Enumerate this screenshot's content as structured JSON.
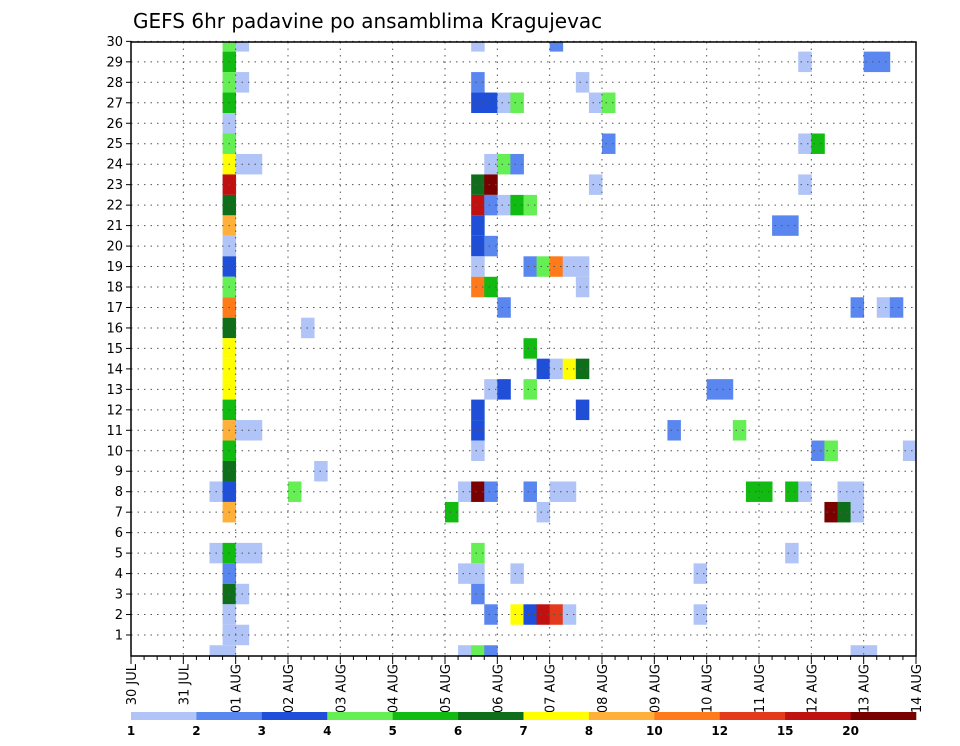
{
  "chart_data": {
    "type": "heatmap",
    "title": "GEFS 6hr padavine po ansamblima Kragujevac",
    "y_ticks": [
      1,
      2,
      3,
      4,
      5,
      6,
      7,
      8,
      9,
      10,
      11,
      12,
      13,
      14,
      15,
      16,
      17,
      18,
      19,
      20,
      21,
      22,
      23,
      24,
      25,
      26,
      27,
      28,
      29,
      30
    ],
    "x_tick_labels": [
      "30 JUL",
      "31 JUL",
      "01 AUG",
      "02 AUG",
      "03 AUG",
      "04 AUG",
      "05 AUG",
      "06 AUG",
      "07 AUG",
      "08 AUG",
      "09 AUG",
      "10 AUG",
      "11 AUG",
      "12 AUG",
      "13 AUG",
      "14 AUG"
    ],
    "x_range_days": [
      0,
      15
    ],
    "y_range": [
      0,
      30
    ],
    "grid": true,
    "grid_style": "dotted",
    "colorbar": {
      "labels": [
        "1",
        "2",
        "3",
        "4",
        "5",
        "6",
        "7",
        "8",
        "10",
        "12",
        "15",
        "20"
      ],
      "colors": [
        "#b0c4f8",
        "#5a87ef",
        "#1f4fd8",
        "#66ee55",
        "#11bb11",
        "#0f6e1a",
        "#ffff00",
        "#ffb03a",
        "#ff7a1a",
        "#e23a1a",
        "#c01010",
        "#7a0000"
      ]
    },
    "cells": [
      {
        "m": 30,
        "t": 1.75,
        "c": 4
      },
      {
        "m": 30,
        "t": 2.0,
        "c": 1
      },
      {
        "m": 30,
        "t": 6.5,
        "c": 1
      },
      {
        "m": 30,
        "t": 8.0,
        "c": 2
      },
      {
        "m": 29,
        "t": 1.75,
        "c": 5
      },
      {
        "m": 29,
        "t": 12.75,
        "c": 1
      },
      {
        "m": 29,
        "t": 14.0,
        "c": 2
      },
      {
        "m": 29,
        "t": 14.25,
        "c": 2
      },
      {
        "m": 28,
        "t": 1.75,
        "c": 4
      },
      {
        "m": 28,
        "t": 2.0,
        "c": 1
      },
      {
        "m": 28,
        "t": 6.5,
        "c": 2
      },
      {
        "m": 28,
        "t": 8.5,
        "c": 1
      },
      {
        "m": 27,
        "t": 1.75,
        "c": 5
      },
      {
        "m": 27,
        "t": 6.5,
        "c": 3
      },
      {
        "m": 27,
        "t": 6.75,
        "c": 3
      },
      {
        "m": 27,
        "t": 7.0,
        "c": 1
      },
      {
        "m": 27,
        "t": 7.25,
        "c": 4
      },
      {
        "m": 27,
        "t": 8.75,
        "c": 1
      },
      {
        "m": 27,
        "t": 9.0,
        "c": 4
      },
      {
        "m": 26,
        "t": 1.75,
        "c": 1
      },
      {
        "m": 25,
        "t": 1.75,
        "c": 4
      },
      {
        "m": 25,
        "t": 9.0,
        "c": 2
      },
      {
        "m": 25,
        "t": 12.75,
        "c": 1
      },
      {
        "m": 25,
        "t": 13.0,
        "c": 5
      },
      {
        "m": 24,
        "t": 1.75,
        "c": 7
      },
      {
        "m": 24,
        "t": 2.0,
        "c": 1
      },
      {
        "m": 24,
        "t": 2.25,
        "c": 1
      },
      {
        "m": 24,
        "t": 6.75,
        "c": 1
      },
      {
        "m": 24,
        "t": 7.0,
        "c": 4
      },
      {
        "m": 24,
        "t": 7.25,
        "c": 2
      },
      {
        "m": 23,
        "t": 1.75,
        "c": 11
      },
      {
        "m": 23,
        "t": 6.5,
        "c": 6
      },
      {
        "m": 23,
        "t": 6.75,
        "c": 12
      },
      {
        "m": 23,
        "t": 8.75,
        "c": 1
      },
      {
        "m": 23,
        "t": 12.75,
        "c": 1
      },
      {
        "m": 22,
        "t": 1.75,
        "c": 6
      },
      {
        "m": 22,
        "t": 6.5,
        "c": 11
      },
      {
        "m": 22,
        "t": 6.75,
        "c": 2
      },
      {
        "m": 22,
        "t": 7.0,
        "c": 1
      },
      {
        "m": 22,
        "t": 7.25,
        "c": 5
      },
      {
        "m": 22,
        "t": 7.5,
        "c": 4
      },
      {
        "m": 21,
        "t": 1.75,
        "c": 8
      },
      {
        "m": 21,
        "t": 6.5,
        "c": 3
      },
      {
        "m": 21,
        "t": 12.25,
        "c": 2
      },
      {
        "m": 21,
        "t": 12.5,
        "c": 2
      },
      {
        "m": 20,
        "t": 1.75,
        "c": 1
      },
      {
        "m": 20,
        "t": 6.5,
        "c": 3
      },
      {
        "m": 20,
        "t": 6.75,
        "c": 2
      },
      {
        "m": 19,
        "t": 1.75,
        "c": 3
      },
      {
        "m": 19,
        "t": 6.5,
        "c": 1
      },
      {
        "m": 19,
        "t": 7.5,
        "c": 2
      },
      {
        "m": 19,
        "t": 7.75,
        "c": 4
      },
      {
        "m": 19,
        "t": 8.0,
        "c": 9
      },
      {
        "m": 19,
        "t": 8.25,
        "c": 1
      },
      {
        "m": 19,
        "t": 8.5,
        "c": 1
      },
      {
        "m": 18,
        "t": 1.75,
        "c": 4
      },
      {
        "m": 18,
        "t": 6.5,
        "c": 9
      },
      {
        "m": 18,
        "t": 6.75,
        "c": 5
      },
      {
        "m": 18,
        "t": 8.5,
        "c": 1
      },
      {
        "m": 17,
        "t": 1.75,
        "c": 9
      },
      {
        "m": 17,
        "t": 7.0,
        "c": 2
      },
      {
        "m": 17,
        "t": 13.75,
        "c": 2
      },
      {
        "m": 17,
        "t": 14.25,
        "c": 1
      },
      {
        "m": 17,
        "t": 14.5,
        "c": 2
      },
      {
        "m": 16,
        "t": 1.75,
        "c": 6
      },
      {
        "m": 16,
        "t": 3.25,
        "c": 1
      },
      {
        "m": 15,
        "t": 1.75,
        "c": 7
      },
      {
        "m": 15,
        "t": 7.5,
        "c": 5
      },
      {
        "m": 14,
        "t": 1.75,
        "c": 7
      },
      {
        "m": 14,
        "t": 7.75,
        "c": 3
      },
      {
        "m": 14,
        "t": 8.0,
        "c": 1
      },
      {
        "m": 14,
        "t": 8.25,
        "c": 7
      },
      {
        "m": 14,
        "t": 8.5,
        "c": 6
      },
      {
        "m": 13,
        "t": 1.75,
        "c": 7
      },
      {
        "m": 13,
        "t": 6.75,
        "c": 1
      },
      {
        "m": 13,
        "t": 7.0,
        "c": 3
      },
      {
        "m": 13,
        "t": 7.5,
        "c": 4
      },
      {
        "m": 13,
        "t": 11.0,
        "c": 2
      },
      {
        "m": 13,
        "t": 11.25,
        "c": 2
      },
      {
        "m": 12,
        "t": 1.75,
        "c": 5
      },
      {
        "m": 12,
        "t": 6.5,
        "c": 3
      },
      {
        "m": 12,
        "t": 8.5,
        "c": 3
      },
      {
        "m": 11,
        "t": 1.75,
        "c": 8
      },
      {
        "m": 11,
        "t": 2.0,
        "c": 1
      },
      {
        "m": 11,
        "t": 2.25,
        "c": 1
      },
      {
        "m": 11,
        "t": 6.5,
        "c": 3
      },
      {
        "m": 11,
        "t": 10.25,
        "c": 2
      },
      {
        "m": 11,
        "t": 11.5,
        "c": 4
      },
      {
        "m": 10,
        "t": 1.75,
        "c": 5
      },
      {
        "m": 10,
        "t": 6.5,
        "c": 1
      },
      {
        "m": 10,
        "t": 13.0,
        "c": 2
      },
      {
        "m": 10,
        "t": 13.25,
        "c": 4
      },
      {
        "m": 10,
        "t": 14.75,
        "c": 1
      },
      {
        "m": 9,
        "t": 1.75,
        "c": 6
      },
      {
        "m": 9,
        "t": 3.5,
        "c": 1
      },
      {
        "m": 8,
        "t": 1.5,
        "c": 1
      },
      {
        "m": 8,
        "t": 1.75,
        "c": 3
      },
      {
        "m": 8,
        "t": 3.0,
        "c": 4
      },
      {
        "m": 8,
        "t": 6.25,
        "c": 1
      },
      {
        "m": 8,
        "t": 6.5,
        "c": 12
      },
      {
        "m": 8,
        "t": 6.75,
        "c": 2
      },
      {
        "m": 8,
        "t": 7.5,
        "c": 2
      },
      {
        "m": 8,
        "t": 8.0,
        "c": 1
      },
      {
        "m": 8,
        "t": 8.25,
        "c": 1
      },
      {
        "m": 8,
        "t": 11.75,
        "c": 5
      },
      {
        "m": 8,
        "t": 12.0,
        "c": 5
      },
      {
        "m": 8,
        "t": 12.5,
        "c": 5
      },
      {
        "m": 8,
        "t": 12.75,
        "c": 1
      },
      {
        "m": 8,
        "t": 13.5,
        "c": 1
      },
      {
        "m": 8,
        "t": 13.75,
        "c": 1
      },
      {
        "m": 7,
        "t": 1.75,
        "c": 8
      },
      {
        "m": 7,
        "t": 6.0,
        "c": 5
      },
      {
        "m": 7,
        "t": 7.75,
        "c": 1
      },
      {
        "m": 7,
        "t": 13.25,
        "c": 12
      },
      {
        "m": 7,
        "t": 13.5,
        "c": 6
      },
      {
        "m": 7,
        "t": 13.75,
        "c": 1
      },
      {
        "m": 5,
        "t": 1.5,
        "c": 1
      },
      {
        "m": 5,
        "t": 1.75,
        "c": 5
      },
      {
        "m": 5,
        "t": 2.0,
        "c": 1
      },
      {
        "m": 5,
        "t": 2.25,
        "c": 1
      },
      {
        "m": 5,
        "t": 6.5,
        "c": 4
      },
      {
        "m": 5,
        "t": 12.5,
        "c": 1
      },
      {
        "m": 4,
        "t": 1.75,
        "c": 2
      },
      {
        "m": 4,
        "t": 6.25,
        "c": 1
      },
      {
        "m": 4,
        "t": 6.5,
        "c": 1
      },
      {
        "m": 4,
        "t": 7.25,
        "c": 1
      },
      {
        "m": 4,
        "t": 10.75,
        "c": 1
      },
      {
        "m": 3,
        "t": 1.75,
        "c": 6
      },
      {
        "m": 3,
        "t": 2.0,
        "c": 1
      },
      {
        "m": 3,
        "t": 6.5,
        "c": 2
      },
      {
        "m": 2,
        "t": 1.75,
        "c": 1
      },
      {
        "m": 2,
        "t": 6.75,
        "c": 2
      },
      {
        "m": 2,
        "t": 7.25,
        "c": 7
      },
      {
        "m": 2,
        "t": 7.5,
        "c": 3
      },
      {
        "m": 2,
        "t": 7.75,
        "c": 11
      },
      {
        "m": 2,
        "t": 8.0,
        "c": 10
      },
      {
        "m": 2,
        "t": 8.25,
        "c": 1
      },
      {
        "m": 2,
        "t": 10.75,
        "c": 1
      },
      {
        "m": 1,
        "t": 1.75,
        "c": 1
      },
      {
        "m": 1,
        "t": 2.0,
        "c": 1
      },
      {
        "m": 0,
        "t": 1.5,
        "c": 1
      },
      {
        "m": 0,
        "t": 1.75,
        "c": 1
      },
      {
        "m": 0,
        "t": 6.25,
        "c": 1
      },
      {
        "m": 0,
        "t": 6.5,
        "c": 4
      },
      {
        "m": 0,
        "t": 6.75,
        "c": 2
      },
      {
        "m": 0,
        "t": 13.75,
        "c": 1
      },
      {
        "m": 0,
        "t": 14.0,
        "c": 1
      }
    ]
  }
}
